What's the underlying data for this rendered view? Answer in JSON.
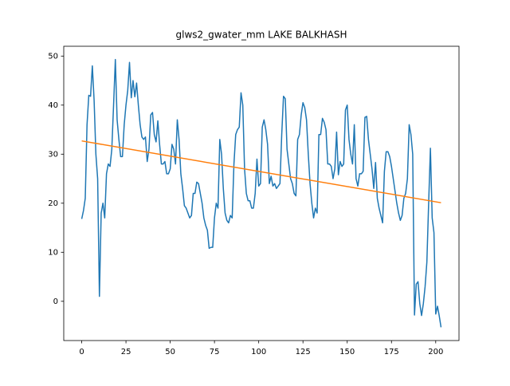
{
  "chart_data": {
    "type": "line",
    "title": "glws2_gwater_mm LAKE BALKHASH",
    "series": [
      {
        "color": "#1f77b4",
        "x": [
          0,
          1,
          2,
          3,
          4,
          5,
          6,
          7,
          8,
          9,
          10,
          11,
          12,
          13,
          14,
          15,
          16,
          17,
          18,
          19,
          20,
          21,
          22,
          23,
          24,
          25,
          26,
          27,
          28,
          29,
          30,
          31,
          32,
          33,
          34,
          35,
          36,
          37,
          38,
          39,
          40,
          41,
          42,
          43,
          44,
          45,
          46,
          47,
          48,
          49,
          50,
          51,
          52,
          53,
          54,
          55,
          56,
          57,
          58,
          59,
          60,
          61,
          62,
          63,
          64,
          65,
          66,
          67,
          68,
          69,
          70,
          71,
          72,
          73,
          74,
          75,
          76,
          77,
          78,
          79,
          80,
          81,
          82,
          83,
          84,
          85,
          86,
          87,
          88,
          89,
          90,
          91,
          92,
          93,
          94,
          95,
          96,
          97,
          98,
          99,
          100,
          101,
          102,
          103,
          104,
          105,
          106,
          107,
          108,
          109,
          110,
          111,
          112,
          113,
          114,
          115,
          116,
          117,
          118,
          119,
          120,
          121,
          122,
          123,
          124,
          125,
          126,
          127,
          128,
          129,
          130,
          131,
          132,
          133,
          134,
          135,
          136,
          137,
          138,
          139,
          140,
          141,
          142,
          143,
          144,
          145,
          146,
          147,
          148,
          149,
          150,
          151,
          152,
          153,
          154,
          155,
          156,
          157,
          158,
          159,
          160,
          161,
          162,
          163,
          164,
          165,
          166,
          167,
          168,
          169,
          170,
          171,
          172,
          173,
          174,
          175,
          176,
          177,
          178,
          179,
          180,
          181,
          182,
          183,
          184,
          185,
          186,
          187,
          188,
          189,
          190,
          191,
          192,
          193,
          194,
          195,
          196,
          197,
          198,
          199,
          200,
          201,
          202,
          203
        ],
        "values": [
          16.8,
          18.5,
          21,
          36,
          42,
          41.8,
          48,
          41,
          30,
          25,
          1,
          18,
          20,
          17,
          26,
          28,
          27.5,
          31,
          40,
          49.3,
          37,
          33,
          29.5,
          29.5,
          36,
          40,
          43,
          48.7,
          41.5,
          45,
          41.7,
          44.5,
          40,
          36,
          33.5,
          33,
          33.5,
          28.5,
          31,
          38,
          38.5,
          34,
          32.5,
          36.8,
          32,
          28,
          28,
          28.5,
          26,
          26,
          27,
          32,
          31,
          28,
          37,
          33,
          26,
          23,
          19.5,
          19,
          18,
          17,
          17.5,
          22,
          22,
          24.3,
          24,
          22,
          20,
          17,
          15.5,
          14.5,
          10.8,
          11,
          11,
          17,
          20,
          19,
          33,
          30,
          23,
          18,
          16.5,
          16,
          17.5,
          17,
          28,
          34,
          35,
          35.5,
          42.5,
          40,
          27,
          22,
          20.5,
          20.5,
          19,
          19,
          22,
          29,
          23.5,
          24,
          35.5,
          37,
          35,
          32,
          24,
          25.5,
          23.5,
          24,
          23,
          23.5,
          24,
          34,
          41.8,
          41.3,
          31,
          28,
          25,
          24,
          22,
          21.5,
          33,
          34,
          38,
          40.5,
          39.5,
          37,
          30,
          24,
          20,
          17,
          19,
          18,
          34,
          34,
          37.3,
          36.5,
          35,
          28,
          28,
          27.5,
          25,
          27,
          34.5,
          25.8,
          28.5,
          27.5,
          28,
          39,
          40,
          33,
          30,
          28,
          36,
          25,
          23.5,
          26,
          26,
          26.5,
          37.5,
          37.7,
          33,
          30,
          27,
          23,
          28.3,
          21,
          19,
          17.5,
          16,
          26.5,
          30.5,
          30.5,
          29.5,
          27.5,
          25,
          22.5,
          20,
          18,
          16.5,
          17.5,
          21,
          22,
          25,
          36,
          34,
          30,
          -2.8,
          3.5,
          4,
          -0.5,
          -2.9,
          -0.5,
          3,
          8,
          20,
          31.2,
          17,
          14,
          -2.6,
          -1,
          -3,
          -5.3
        ]
      },
      {
        "color": "#ff7f0e",
        "x": [
          0,
          203
        ],
        "values": [
          32.7,
          20.1
        ]
      }
    ],
    "xlim": [
      -10.15,
      213.15
    ],
    "xticks": [
      0,
      25,
      50,
      75,
      100,
      125,
      150,
      175,
      200
    ],
    "ylim": [
      -8,
      52
    ],
    "yticks": [
      0,
      10,
      20,
      30,
      40,
      50
    ],
    "grid": false
  }
}
